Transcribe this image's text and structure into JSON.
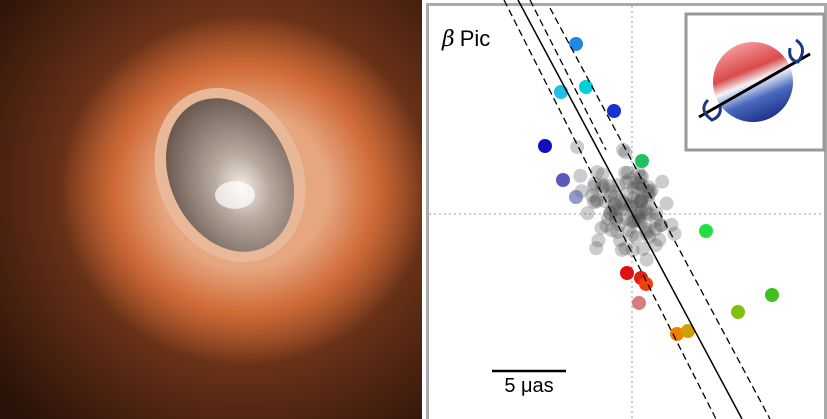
{
  "figure": {
    "label_symbol": "β",
    "label_text": "Pic",
    "scale_bar_label": "5 μas"
  }
}
